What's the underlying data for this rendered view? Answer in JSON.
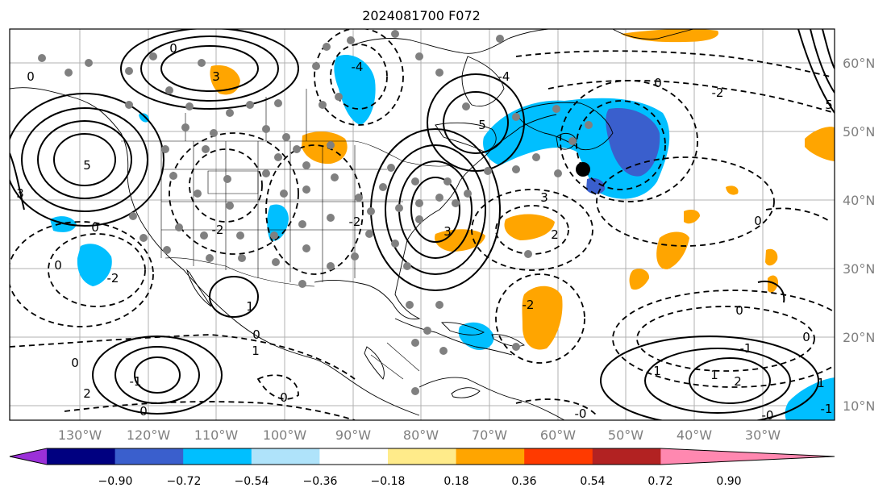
{
  "title": "2024081700 F072",
  "map": {
    "lon_ticks": [
      "130°W",
      "120°W",
      "110°W",
      "100°W",
      "90°W",
      "80°W",
      "70°W",
      "60°W",
      "50°W",
      "40°W",
      "30°W"
    ],
    "lat_ticks": [
      "60°N",
      "50°N",
      "40°N",
      "30°N",
      "20°N",
      "10°N"
    ],
    "contour_labels": [
      "3",
      "3",
      "-4",
      "0",
      "0",
      "5",
      "5",
      "5",
      "3",
      "-4",
      "0",
      "-2",
      "0",
      "0",
      "2",
      "3",
      "0",
      "1",
      "-2",
      "-2",
      "0",
      "1",
      "0",
      "-2",
      "0",
      "-1",
      "0",
      "1",
      "-1",
      "0",
      "1",
      "2",
      "2",
      "1",
      "-1",
      "-0",
      "0",
      "-2",
      "-0"
    ]
  },
  "colorbar": {
    "tick_labels": [
      "−0.90",
      "−0.72",
      "−0.54",
      "−0.36",
      "−0.18",
      "0.18",
      "0.36",
      "0.54",
      "0.72",
      "0.90"
    ],
    "colors": [
      "#9b30d8",
      "#000080",
      "#3a5fcd",
      "#00bfff",
      "#afe3fa",
      "#ffffff",
      "#ffeb8a",
      "#ffa500",
      "#ff3a00",
      "#b22222",
      "#ff88b0"
    ]
  }
}
